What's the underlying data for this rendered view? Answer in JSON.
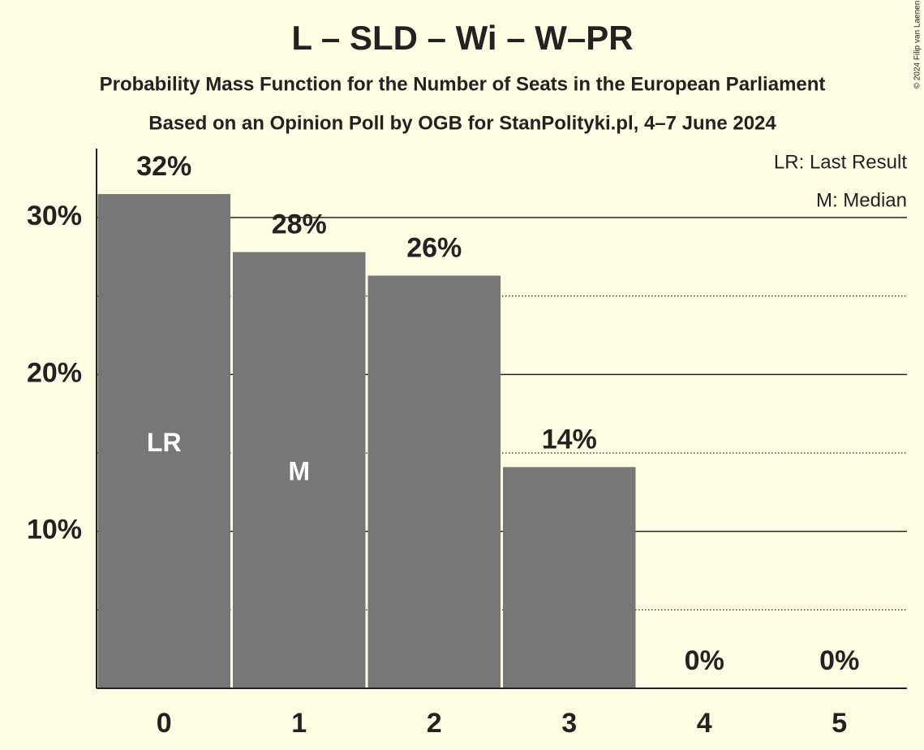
{
  "chart_data": {
    "type": "bar",
    "title": "L – SLD – Wi – W–PR",
    "subtitle": "Probability Mass Function for the Number of Seats in the European Parliament",
    "subtitle2": "Based on an Opinion Poll by OGB for StanPolityki.pl, 4–7 June 2024",
    "credit": "© 2024 Filip van Laenen",
    "categories": [
      "0",
      "1",
      "2",
      "3",
      "4",
      "5"
    ],
    "values": [
      31.5,
      27.8,
      26.3,
      14.1,
      0,
      0
    ],
    "value_labels": [
      "32%",
      "28%",
      "26%",
      "14%",
      "0%",
      "0%"
    ],
    "bar_annotations": [
      "LR",
      "M",
      null,
      null,
      null,
      null
    ],
    "legend": [
      "LR: Last Result",
      "M: Median"
    ],
    "color": "#777777",
    "ylim": [
      0,
      34.4
    ],
    "yticks": [
      {
        "value": 10,
        "label": "10%"
      },
      {
        "value": 20,
        "label": "20%"
      },
      {
        "value": 30,
        "label": "30%"
      }
    ],
    "minor_yticks": [
      5,
      15,
      25
    ],
    "grid": true
  }
}
